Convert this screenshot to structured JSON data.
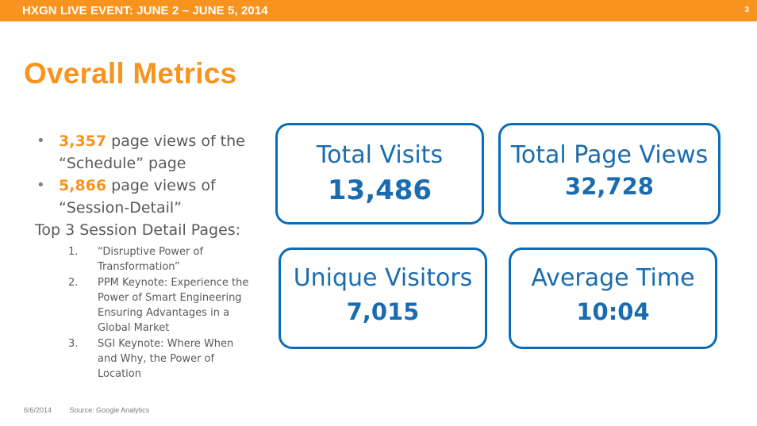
{
  "header": {
    "event_title": "HXGN LIVE EVENT: JUNE 2 – JUNE 5, 2014",
    "page_number": "3"
  },
  "title": "Overall Metrics",
  "bullets": [
    {
      "number": "3,357",
      "text_line1": " page views of the",
      "text_line2": "“Schedule” page"
    },
    {
      "number": "5,866",
      "text_line1": " page views of",
      "text_line2": "“Session-Detail”"
    }
  ],
  "top3": {
    "heading": "Top 3 Session Detail Pages:",
    "items": [
      {
        "index": "1.",
        "text": "“Disruptive Power of Transformation”"
      },
      {
        "index": "2.",
        "text": "PPM Keynote: Experience the Power of Smart Engineering Ensuring Advantages in a Global Market"
      },
      {
        "index": "3.",
        "text": "SGI Keynote: Where When and Why, the Power of Location"
      }
    ]
  },
  "metrics": [
    {
      "label": "Total Visits",
      "value": "13,486"
    },
    {
      "label": "Total Page Views",
      "value": "32,728"
    },
    {
      "label": "Unique Visitors",
      "value": "7,015"
    },
    {
      "label": "Average Time",
      "value": "10:04"
    }
  ],
  "footer": {
    "date": "6/6/2014",
    "source": "Source: Google Analytics"
  },
  "colors": {
    "accent_orange": "#f7931e",
    "metric_blue": "#0a6cb8",
    "body_gray": "#595959"
  }
}
